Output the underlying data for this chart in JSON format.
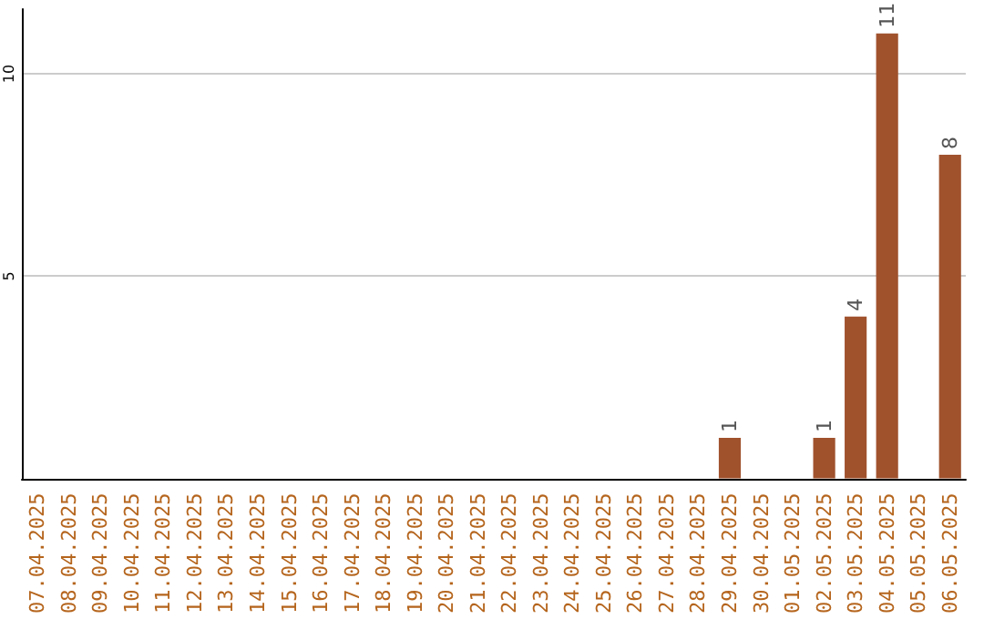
{
  "chart_data": {
    "type": "bar",
    "categories": [
      "07.04.2025",
      "08.04.2025",
      "09.04.2025",
      "10.04.2025",
      "11.04.2025",
      "12.04.2025",
      "13.04.2025",
      "14.04.2025",
      "15.04.2025",
      "16.04.2025",
      "17.04.2025",
      "18.04.2025",
      "19.04.2025",
      "20.04.2025",
      "21.04.2025",
      "22.04.2025",
      "23.04.2025",
      "24.04.2025",
      "25.04.2025",
      "26.04.2025",
      "27.04.2025",
      "28.04.2025",
      "29.04.2025",
      "30.04.2025",
      "01.05.2025",
      "02.05.2025",
      "03.05.2025",
      "04.05.2025",
      "05.05.2025",
      "06.05.2025"
    ],
    "values": [
      0,
      0,
      0,
      0,
      0,
      0,
      0,
      0,
      0,
      0,
      0,
      0,
      0,
      0,
      0,
      0,
      0,
      0,
      0,
      0,
      0,
      0,
      1,
      0,
      0,
      1,
      4,
      11,
      0,
      8
    ],
    "value_labels": [
      null,
      null,
      null,
      null,
      null,
      null,
      null,
      null,
      null,
      null,
      null,
      null,
      null,
      null,
      null,
      null,
      null,
      null,
      null,
      null,
      null,
      null,
      "1",
      null,
      null,
      "1",
      "4",
      "11",
      null,
      "8"
    ],
    "color": "#a0522d",
    "ylim": [
      0,
      11.6
    ],
    "yticks": [
      5,
      10
    ],
    "grid": "y"
  }
}
